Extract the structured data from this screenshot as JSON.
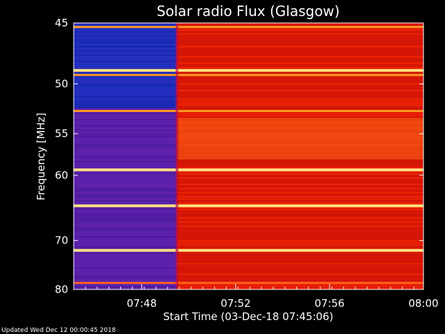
{
  "chart_data": {
    "type": "heatmap",
    "title": "Solar radio Flux (Glasgow)",
    "xlabel": "Start Time (03-Dec-18 07:45:06)",
    "ylabel": "Frequency [MHz]",
    "x_ticks": [
      "07:48",
      "07:52",
      "07:56",
      "08:00"
    ],
    "x_tick_minutes": [
      2.9,
      6.9,
      10.9,
      14.9
    ],
    "x_range_minutes": [
      0,
      14.9
    ],
    "y_ticks": [
      45,
      50,
      55,
      60,
      70,
      80
    ],
    "y_range_mhz": [
      45,
      80
    ],
    "y_scale": "reciprocal",
    "transition_minute": 4.4,
    "bands": [
      {
        "freq": 45.3,
        "level": "high"
      },
      {
        "freq": 48.8,
        "level": "very-high"
      },
      {
        "freq": 49.2,
        "level": "high"
      },
      {
        "freq": 52.6,
        "level": "high"
      },
      {
        "freq": 59.3,
        "level": "very-high"
      },
      {
        "freq": 64.3,
        "level": "very-high"
      },
      {
        "freq": 71.8,
        "level": "very-high"
      },
      {
        "freq": 78.5,
        "level": "medium"
      }
    ],
    "colors": {
      "background_quiet": "#5a1fa8",
      "background_active": "#e01800",
      "band_high": "#ff9a20",
      "band_peak": "#ffe080",
      "low_freq_quiet": "#1030c0"
    }
  },
  "footer": "Updated Wed Dec 12 00:00:45 2018"
}
